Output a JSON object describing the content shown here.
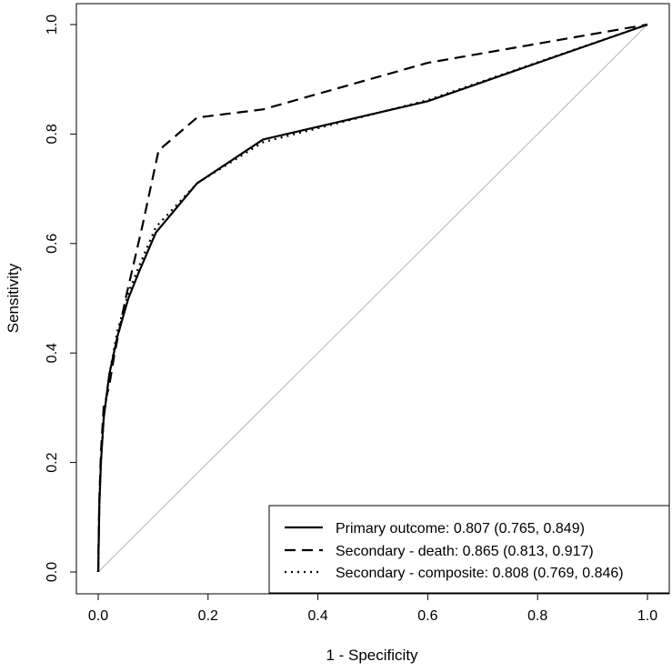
{
  "chart_data": {
    "type": "line",
    "title": "",
    "xlabel": "1 - Specificity",
    "ylabel": "Sensitivity",
    "xlim": [
      0,
      1
    ],
    "ylim": [
      0,
      1
    ],
    "x_ticks": [
      0.0,
      0.2,
      0.4,
      0.6,
      0.8,
      1.0
    ],
    "y_ticks": [
      0.0,
      0.2,
      0.4,
      0.6,
      0.8,
      1.0
    ],
    "x_tick_labels": [
      "0.0",
      "0.2",
      "0.4",
      "0.6",
      "0.8",
      "1.0"
    ],
    "y_tick_labels": [
      "0.0",
      "0.2",
      "0.4",
      "0.6",
      "0.8",
      "1.0"
    ],
    "grid": false,
    "legend_position": "bottom-right",
    "reference_line": {
      "x": [
        0,
        1
      ],
      "y": [
        0,
        1
      ],
      "color": "#b5b5b5"
    },
    "series": [
      {
        "name": "Primary outcome: 0.807 (0.765, 0.849)",
        "style": "solid",
        "x": [
          0.0,
          0.002,
          0.005,
          0.01,
          0.02,
          0.035,
          0.055,
          0.075,
          0.105,
          0.18,
          0.3,
          0.6,
          1.0
        ],
        "y": [
          0.0,
          0.12,
          0.2,
          0.28,
          0.36,
          0.43,
          0.5,
          0.55,
          0.62,
          0.71,
          0.79,
          0.86,
          1.0
        ]
      },
      {
        "name": "Secondary - death: 0.865 (0.813, 0.917)",
        "style": "dashed",
        "x": [
          0.0,
          0.002,
          0.005,
          0.01,
          0.02,
          0.03,
          0.05,
          0.08,
          0.11,
          0.18,
          0.3,
          0.6,
          1.0
        ],
        "y": [
          0.0,
          0.13,
          0.22,
          0.3,
          0.34,
          0.4,
          0.5,
          0.63,
          0.77,
          0.83,
          0.845,
          0.93,
          1.0
        ]
      },
      {
        "name": "Secondary - composite: 0.808 (0.769, 0.846)",
        "style": "dotted",
        "x": [
          0.0,
          0.002,
          0.005,
          0.01,
          0.02,
          0.035,
          0.055,
          0.075,
          0.105,
          0.18,
          0.3,
          0.6,
          1.0
        ],
        "y": [
          0.0,
          0.12,
          0.2,
          0.28,
          0.36,
          0.44,
          0.51,
          0.56,
          0.63,
          0.71,
          0.785,
          0.862,
          1.0
        ]
      }
    ]
  },
  "styles": {
    "solid": "",
    "dashed": "12 7",
    "dotted": "2 5"
  }
}
